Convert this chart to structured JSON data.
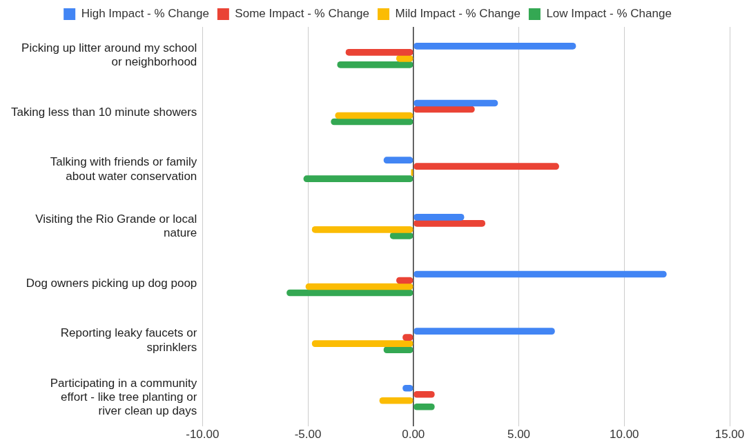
{
  "chart_data": {
    "type": "bar",
    "orientation": "horizontal",
    "categories": [
      "Picking up litter around my school or neighborhood",
      "Taking less than 10 minute showers",
      "Talking with friends or family about water conservation",
      "Visiting the Rio Grande or local nature",
      "Dog owners picking up dog poop",
      "Reporting leaky faucets or sprinklers",
      "Participating in a community effort - like tree planting or river clean up days"
    ],
    "series": [
      {
        "name": "High Impact - % Change",
        "color": "#4285f4",
        "values": [
          7.7,
          4.0,
          -1.4,
          2.4,
          12.0,
          6.7,
          -0.5
        ]
      },
      {
        "name": "Some Impact - % Change",
        "color": "#ea4335",
        "values": [
          -3.2,
          2.9,
          6.9,
          3.4,
          -0.8,
          -0.5,
          1.0
        ]
      },
      {
        "name": "Mild Impact - % Change",
        "color": "#fbbc04",
        "values": [
          -0.8,
          -3.7,
          -0.1,
          -4.8,
          -5.1,
          -4.8,
          -1.6
        ]
      },
      {
        "name": "Low Impact - % Change",
        "color": "#34a853",
        "values": [
          -3.6,
          -3.9,
          -5.2,
          -1.1,
          -6.0,
          -1.4,
          1.0
        ]
      }
    ],
    "xlim": [
      -10,
      15
    ],
    "xticks": [
      {
        "value": -10,
        "label": "-10.00"
      },
      {
        "value": -5,
        "label": "-5.00"
      },
      {
        "value": 0,
        "label": "0.00"
      },
      {
        "value": 5,
        "label": "5.00"
      },
      {
        "value": 10,
        "label": "10.00"
      },
      {
        "value": 15,
        "label": "15.00"
      }
    ],
    "grid": "x",
    "legend": "top"
  }
}
